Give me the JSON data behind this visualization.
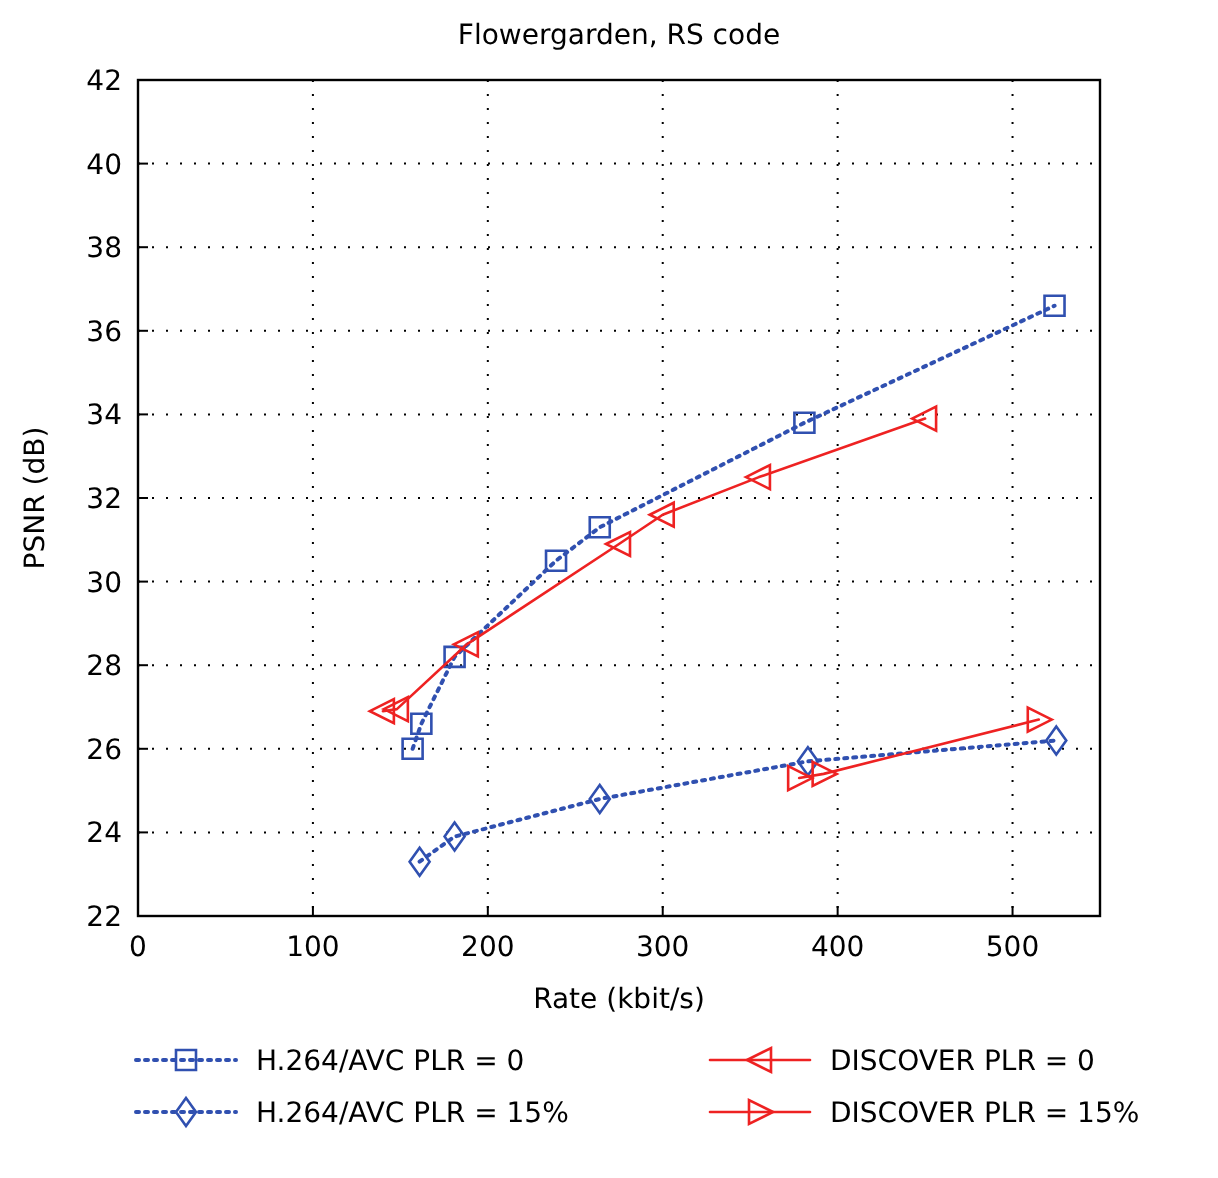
{
  "chart_data": {
    "type": "line",
    "title": "Flowergarden, RS code",
    "xlabel": "Rate (kbit/s)",
    "ylabel": "PSNR (dB)",
    "xlim": [
      0,
      550
    ],
    "xticks": [
      0,
      100,
      200,
      300,
      400,
      500
    ],
    "ylim": [
      22,
      42
    ],
    "yticks": [
      22,
      24,
      26,
      28,
      30,
      32,
      34,
      36,
      38,
      40,
      42
    ],
    "grid": true,
    "legend": "bottom",
    "series": [
      {
        "name": "H.264/AVC PLR = 0",
        "color": "#3050b0",
        "marker": "square",
        "line_style": "dotted",
        "x": [
          157,
          162,
          181,
          239,
          264,
          381,
          524
        ],
        "values": [
          26.0,
          26.6,
          28.2,
          30.5,
          31.3,
          33.8,
          36.6
        ]
      },
      {
        "name": "H.264/AVC PLR = 15%",
        "color": "#3050b0",
        "marker": "diamond",
        "line_style": "dotted",
        "x": [
          161,
          181,
          264,
          383,
          525
        ],
        "values": [
          23.3,
          23.9,
          24.8,
          25.7,
          26.2
        ]
      },
      {
        "name": "DISCOVER PLR = 0",
        "color": "#ee2222",
        "marker": "triangle-left",
        "line_style": "solid",
        "x": [
          140,
          148,
          188,
          275,
          300,
          355,
          450
        ],
        "values": [
          26.9,
          26.95,
          28.5,
          30.9,
          31.6,
          32.5,
          33.9
        ]
      },
      {
        "name": "DISCOVER PLR = 15%",
        "color": "#ee2222",
        "marker": "triangle-right",
        "line_style": "solid",
        "x": [
          378,
          392,
          515
        ],
        "values": [
          25.3,
          25.4,
          26.7
        ]
      }
    ]
  }
}
